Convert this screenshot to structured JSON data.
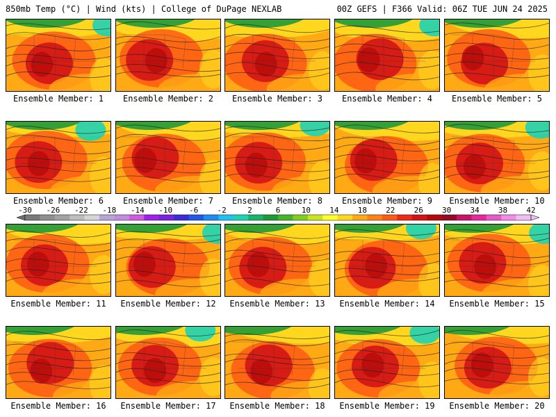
{
  "header": {
    "left": "850mb Temp (°C) | Wind (kts) | College of DuPage NEXLAB",
    "right": "00Z GEFS | F366 Valid: 06Z TUE JUN 24 2025"
  },
  "member_label_prefix": "Ensemble Member: ",
  "members": [
    1,
    2,
    3,
    4,
    5,
    6,
    7,
    8,
    9,
    10,
    11,
    12,
    13,
    14,
    15,
    16,
    17,
    18,
    19,
    20
  ],
  "colorbar": {
    "ticks": [
      "-30",
      "-26",
      "-22",
      "-18",
      "-14",
      "-10",
      "-6",
      "-2",
      "2",
      "6",
      "10",
      "14",
      "18",
      "22",
      "26",
      "30",
      "34",
      "38",
      "42"
    ],
    "colors": [
      "#7a7a7a",
      "#8f8f8f",
      "#a3a3a3",
      "#bdbdbd",
      "#d6d6d6",
      "#b6a6d6",
      "#c08ce0",
      "#d05ae0",
      "#a020f0",
      "#7a22e0",
      "#3a2cd8",
      "#1e5ae6",
      "#1e8cf0",
      "#22c0f0",
      "#1ed2b4",
      "#18b46a",
      "#1e9a38",
      "#46b428",
      "#82cd1e",
      "#c8e61e",
      "#ffff28",
      "#ffd71e",
      "#ffaa14",
      "#ff8214",
      "#ff5a14",
      "#f02814",
      "#d21414",
      "#b40a0a",
      "#960a28",
      "#c81464",
      "#e6289a",
      "#e65ac8",
      "#f08ce6",
      "#f0bef0"
    ],
    "arrow_colors": [
      "#6e6e6e",
      "#f0bef0"
    ]
  },
  "map_style": {
    "hot_core": "#d21414",
    "warm": "#ff5a14",
    "mild": "#ffaa14",
    "cool": "#ffd71e",
    "cold": "#1e9a38",
    "coldest": "#1ed2b4"
  }
}
